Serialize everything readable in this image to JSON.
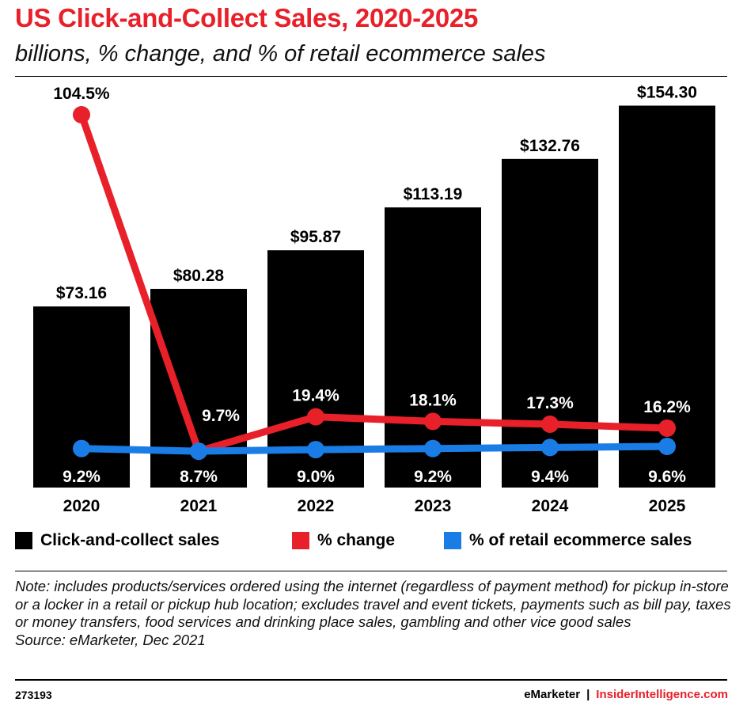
{
  "header": {
    "title": "US Click-and-Collect Sales, 2020-2025",
    "subtitle": "billions, % change, and % of retail ecommerce sales"
  },
  "chart_data": {
    "type": "bar",
    "categories": [
      "2020",
      "2021",
      "2022",
      "2023",
      "2024",
      "2025"
    ],
    "series": [
      {
        "name": "Click-and-collect sales",
        "type": "bar",
        "color": "#000000",
        "values": [
          73.16,
          80.28,
          95.87,
          113.19,
          132.76,
          154.3
        ],
        "labels": [
          "$73.16",
          "$80.28",
          "$95.87",
          "$113.19",
          "$132.76",
          "$154.30"
        ]
      },
      {
        "name": "% change",
        "type": "line",
        "color": "#e8202a",
        "values": [
          104.5,
          9.7,
          19.4,
          18.1,
          17.3,
          16.2
        ],
        "labels": [
          "104.5%",
          "9.7%",
          "19.4%",
          "18.1%",
          "17.3%",
          "16.2%"
        ]
      },
      {
        "name": "% of retail ecommerce sales",
        "type": "line",
        "color": "#1a7de6",
        "values": [
          9.2,
          8.7,
          9.0,
          9.2,
          9.4,
          9.6
        ],
        "labels": [
          "9.2%",
          "8.7%",
          "9.0%",
          "9.2%",
          "9.4%",
          "9.6%"
        ]
      }
    ],
    "ylim": [
      0,
      165
    ],
    "grid": false,
    "legend": "bottom"
  },
  "note": {
    "text": "Note: includes products/services ordered using the internet (regardless of payment method) for pickup in-store or a locker in a retail or pickup hub location; excludes travel and event tickets, payments such as bill pay, taxes or money transfers, food services and drinking place sales, gambling and other vice good sales",
    "source": "Source: eMarketer, Dec 2021"
  },
  "footer": {
    "id": "273193",
    "brand1": "eMarketer",
    "separator": "|",
    "brand2": "InsiderIntelligence.com"
  }
}
